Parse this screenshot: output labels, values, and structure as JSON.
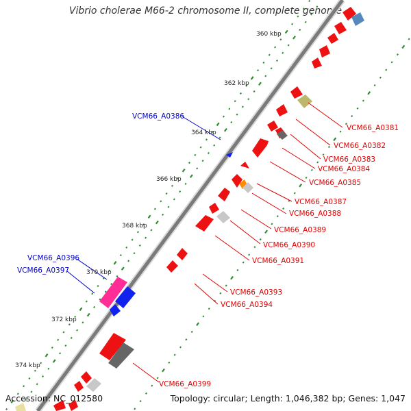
{
  "title": "Vibrio cholerae M66-2 chromosome II, complete genome",
  "footer": {
    "accession": "Accession: NC_012580",
    "summary": "Topology: circular; Length: 1,046,382 bp; Genes: 1,047"
  },
  "colors": {
    "backbone": "#888888",
    "tick": "#2e8b2e",
    "gene_default": "#ee0000",
    "label_red": "#dd0000",
    "label_blue": "#0000cc"
  },
  "ticks": [
    "360 kbp",
    "362 kbp",
    "364 kbp",
    "366 kbp",
    "368 kbp",
    "370 kbp",
    "372 kbp",
    "374 kbp"
  ],
  "labels_red": [
    "VCM66_A0381",
    "VCM66_A0382",
    "VCM66_A0383",
    "VCM66_A0384",
    "VCM66_A0385",
    "VCM66_A0387",
    "VCM66_A0388",
    "VCM66_A0389",
    "VCM66_A0390",
    "VCM66_A0391",
    "VCM66_A0393",
    "VCM66_A0394",
    "VCM66_A0399"
  ],
  "labels_blue": [
    "VCM66_A0386",
    "VCM66_A0396",
    "VCM66_A0397"
  ]
}
